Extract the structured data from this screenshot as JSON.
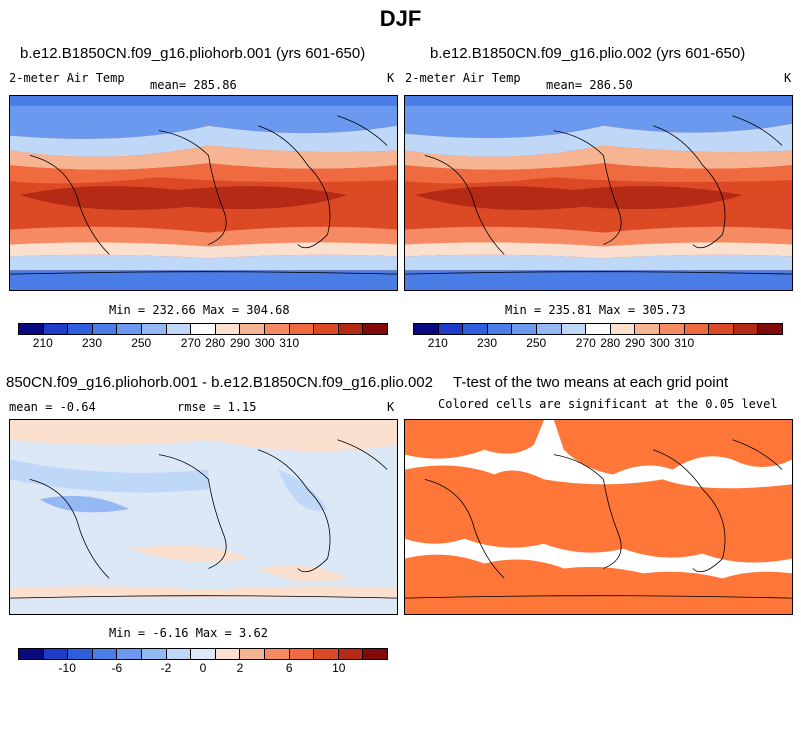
{
  "title": "DJF",
  "colors": {
    "abs_scale": [
      "#0a0a80",
      "#1e3cc8",
      "#2d5fdc",
      "#4a7ee6",
      "#6a99ef",
      "#93b8f3",
      "#c0d8f7",
      "#ffffff",
      "#fbe0cf",
      "#f7b493",
      "#f58a63",
      "#f06a3f",
      "#dc4a25",
      "#b42a15",
      "#800a0a"
    ],
    "diff_scale": [
      "#0a0a80",
      "#1e3cc8",
      "#2d5fdc",
      "#4a7ee6",
      "#6a99ef",
      "#93b8f3",
      "#c0d8f7",
      "#dde8f7",
      "#fbe0cf",
      "#f7b493",
      "#f58a63",
      "#f06a3f",
      "#dc4a25",
      "#b42a15",
      "#800a0a"
    ],
    "ttest": "#ff7738"
  },
  "panels": {
    "p1": {
      "title": "b.e12.B1850CN.f09_g16.pliohorb.001 (yrs 601-650)",
      "variable": "2-meter Air Temp",
      "mean": "mean= 285.86",
      "units": "K",
      "minmax": "Min = 232.66 Max = 304.68",
      "ticks": [
        "210",
        "230",
        "250",
        "270",
        "280",
        "290",
        "300",
        "310"
      ]
    },
    "p2": {
      "title": "b.e12.B1850CN.f09_g16.plio.002 (yrs 601-650)",
      "variable": "2-meter Air Temp",
      "mean": "mean= 286.50",
      "units": "K",
      "minmax": "Min = 235.81 Max = 305.73",
      "ticks": [
        "210",
        "230",
        "250",
        "270",
        "280",
        "290",
        "300",
        "310"
      ]
    },
    "p3": {
      "title": "850CN.f09_g16.pliohorb.001 - b.e12.B1850CN.f09_g16.plio.002",
      "mean": "mean =  -0.64",
      "rmse": "rmse =   1.15",
      "units": "K",
      "minmax": "Min =  -6.16 Max =   3.62",
      "ticks": [
        "-10",
        "-6",
        "-2",
        "0",
        "2",
        "6",
        "10"
      ]
    },
    "p4": {
      "title": "T-test of the two means at each grid point",
      "subtitle": "Colored cells are significant at the 0.05 level"
    }
  }
}
